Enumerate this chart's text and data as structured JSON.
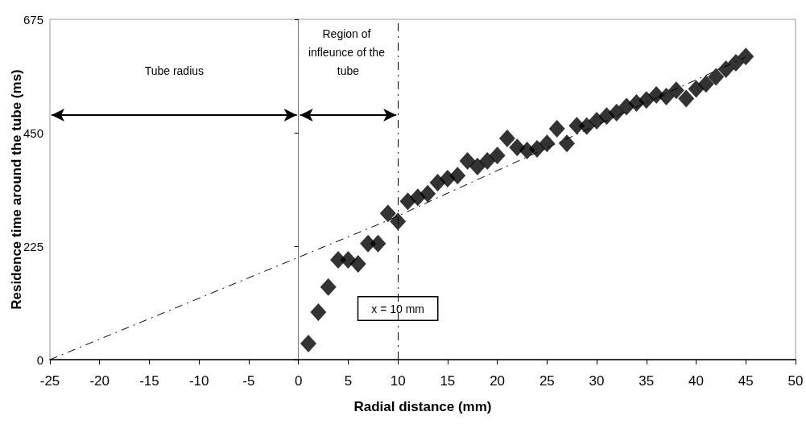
{
  "chart_data": {
    "type": "scatter",
    "xlabel": "Radial distance (mm)",
    "ylabel": "Residence time around the tube (ms)",
    "xlim": [
      -25,
      50
    ],
    "xticks": [
      -25,
      -20,
      -15,
      -10,
      -5,
      0,
      5,
      10,
      15,
      20,
      25,
      30,
      35,
      40,
      45,
      50
    ],
    "ylim": [
      0,
      675
    ],
    "yticks": [
      0,
      225,
      450,
      675
    ],
    "grid": false,
    "marker": "diamond",
    "series": [
      {
        "color": "#000000",
        "x": [
          1,
          2,
          3,
          4,
          5,
          6,
          7,
          8,
          9,
          10,
          11,
          12,
          13,
          14,
          15,
          16,
          17,
          18,
          19,
          20,
          21,
          22,
          23,
          24,
          25,
          26,
          27,
          28,
          29,
          30,
          31,
          32,
          33,
          34,
          35,
          36,
          37,
          38,
          39,
          40,
          41,
          42,
          43,
          44,
          45
        ],
        "values": [
          32,
          94,
          144,
          198,
          198,
          190,
          230,
          230,
          290,
          274,
          314,
          322,
          329,
          351,
          359,
          365,
          394,
          383,
          394,
          405,
          439,
          421,
          415,
          418,
          429,
          458,
          429,
          464,
          463,
          474,
          483,
          490,
          502,
          509,
          515,
          525,
          522,
          534,
          518,
          537,
          547,
          561,
          576,
          589,
          601
        ]
      },
      {
        "type": "line",
        "color": "#000000",
        "line_style": "dashed",
        "marker": "none",
        "x": [
          -25,
          9,
          45
        ],
        "values": [
          0,
          276,
          600
        ]
      }
    ],
    "ref_lines": [
      {
        "axis": "x",
        "value": 10,
        "label": "x = 10 mm",
        "line_style": "dashed",
        "color": "#000000"
      }
    ],
    "annotations": [
      "Tube radius",
      "Region of infleunce of the tube"
    ]
  }
}
